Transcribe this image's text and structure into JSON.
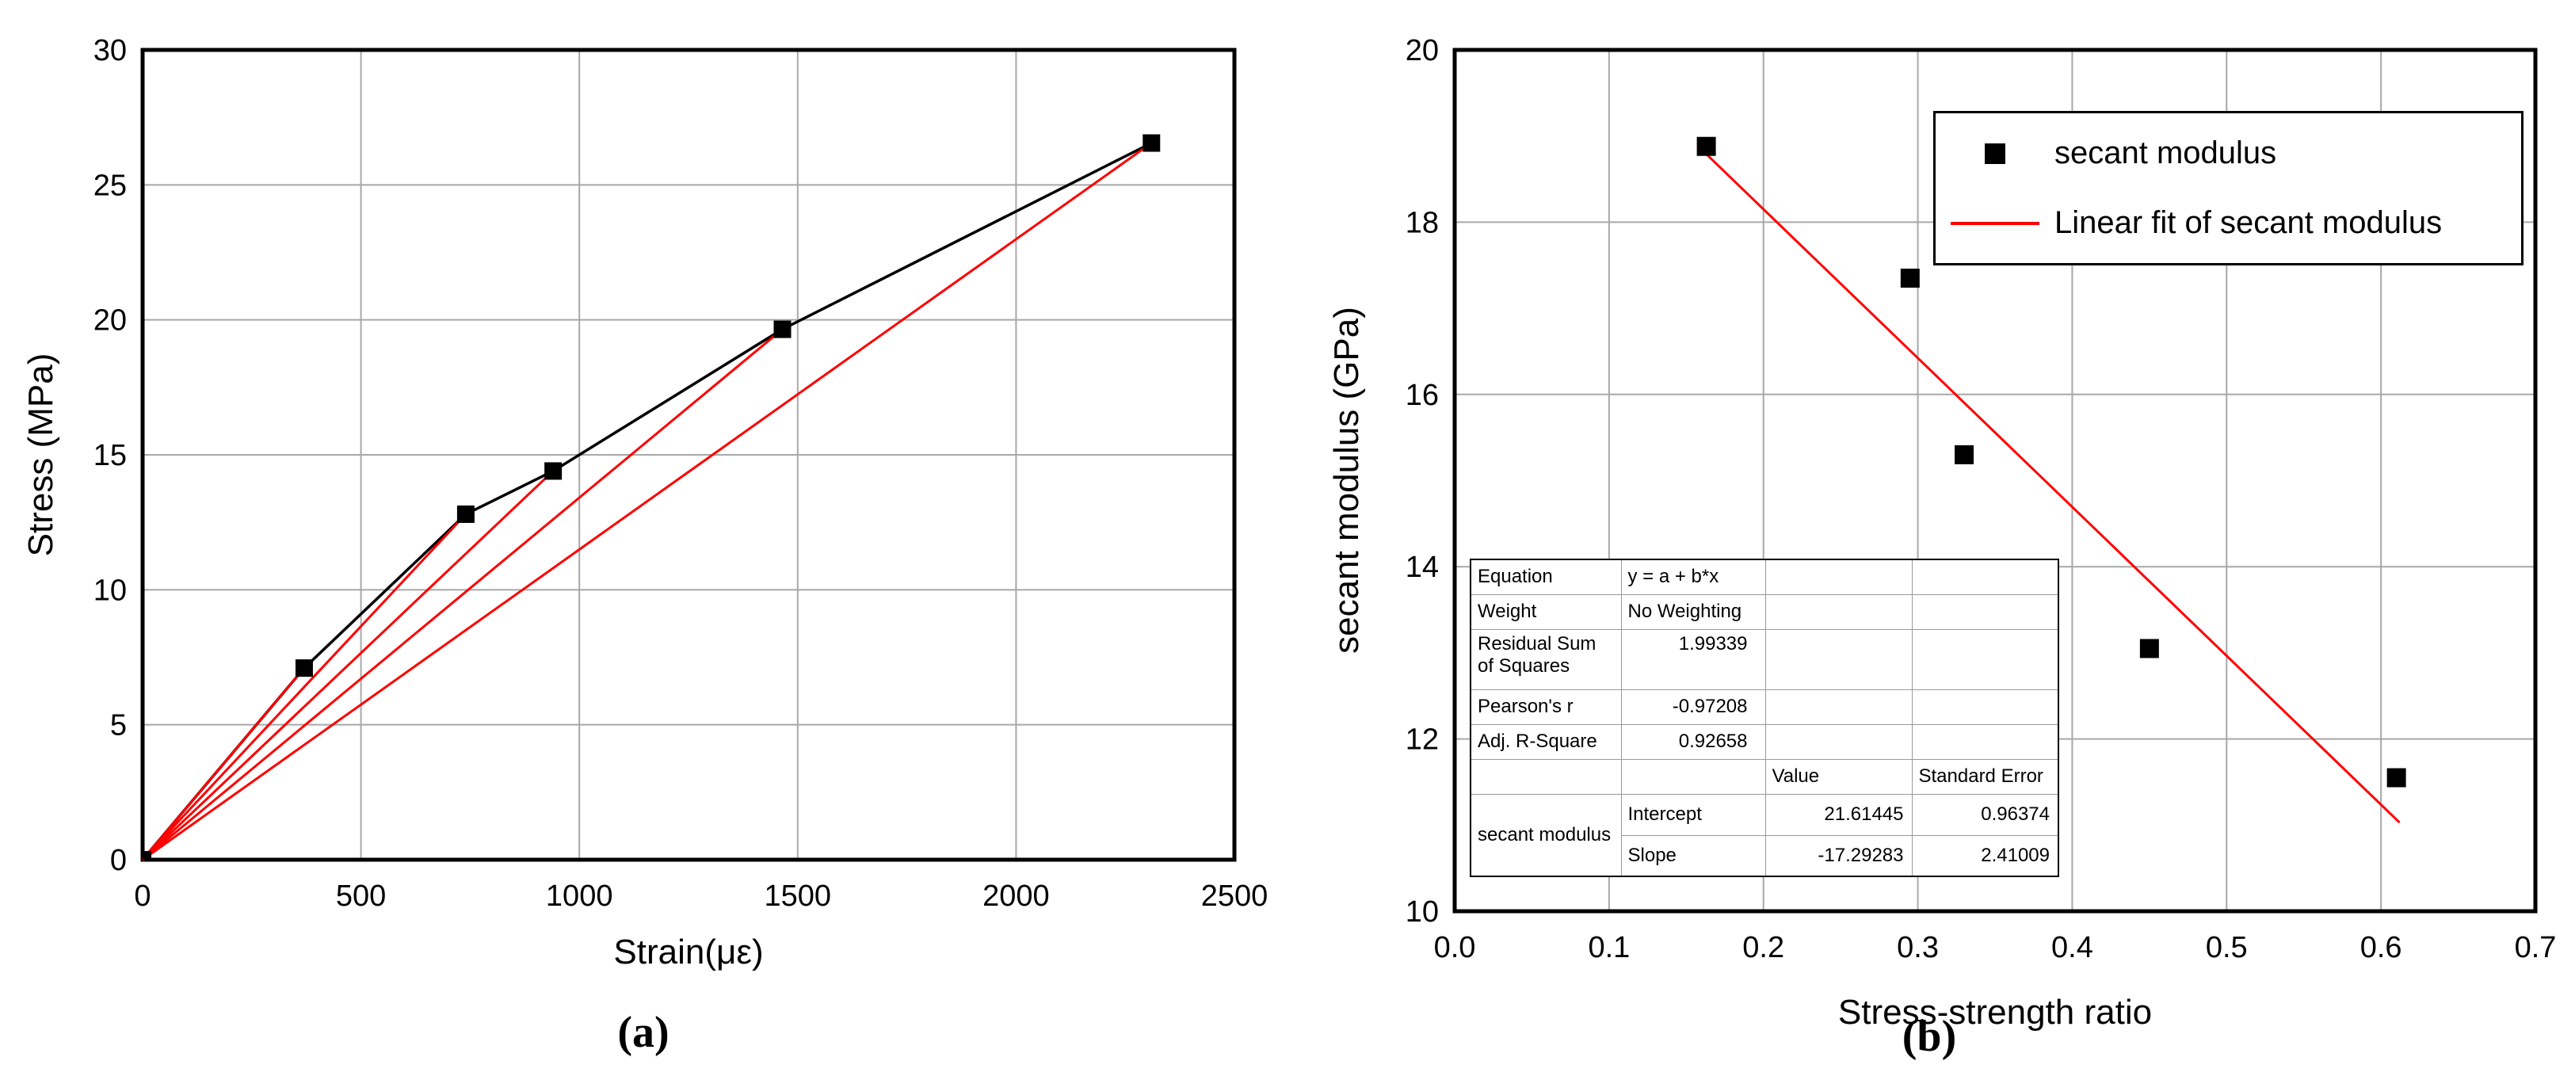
{
  "figure": {
    "background": "#ffffff",
    "captions": {
      "a": "(a)",
      "b": "(b)"
    }
  },
  "colors": {
    "curve_black": "#000000",
    "secant_red": "#ff0000",
    "fit_red": "#ff0000",
    "grid_gray": "#a8a8a8",
    "axis_black": "#000000",
    "marker_black": "#000000"
  },
  "chart_data": [
    {
      "id": "a",
      "type": "line",
      "caption": "(a)",
      "xlabel": "Strain(με)",
      "ylabel": "Stress (MPa)",
      "xlim": [
        0,
        2500
      ],
      "ylim": [
        0,
        30
      ],
      "grid": true,
      "xticks": [
        0,
        500,
        1000,
        1500,
        2000,
        2500
      ],
      "xtick_labels": [
        "0",
        "500",
        "1000",
        "1500",
        "2000",
        "2500"
      ],
      "yticks": [
        0,
        5,
        10,
        15,
        20,
        25,
        30
      ],
      "ytick_labels": [
        "0",
        "5",
        "10",
        "15",
        "20",
        "25",
        "30"
      ],
      "series": [
        {
          "name": "stress-strain curve",
          "color": "#000000",
          "marker": "square",
          "points": [
            [
              0,
              0
            ],
            [
              370,
              7.1
            ],
            [
              740,
              12.8
            ],
            [
              940,
              14.4
            ],
            [
              1465,
              19.65
            ],
            [
              2310,
              26.55
            ]
          ]
        }
      ],
      "secant_lines": {
        "name": "secant lines from origin",
        "color": "#ff0000",
        "from": [
          0,
          0
        ],
        "to": [
          [
            370,
            7.1
          ],
          [
            740,
            12.8
          ],
          [
            940,
            14.4
          ],
          [
            1465,
            19.65
          ],
          [
            2310,
            26.55
          ]
        ]
      }
    },
    {
      "id": "b",
      "type": "scatter",
      "caption": "(b)",
      "xlabel": "Stress-strength ratio",
      "ylabel": "secant modulus (GPa)",
      "xlim": [
        0.0,
        0.7
      ],
      "ylim": [
        10,
        20
      ],
      "grid": true,
      "xticks": [
        0.0,
        0.1,
        0.2,
        0.3,
        0.4,
        0.5,
        0.6,
        0.7
      ],
      "xtick_labels": [
        "0.0",
        "0.1",
        "0.2",
        "0.3",
        "0.4",
        "0.5",
        "0.6",
        "0.7"
      ],
      "yticks": [
        10,
        12,
        14,
        16,
        18,
        20
      ],
      "ytick_labels": [
        "10",
        "12",
        "14",
        "16",
        "18",
        "20"
      ],
      "scatter": {
        "name": "secant modulus",
        "color": "#000000",
        "marker": "square",
        "points": [
          [
            0.163,
            18.88
          ],
          [
            0.295,
            17.35
          ],
          [
            0.33,
            15.3
          ],
          [
            0.45,
            13.05
          ],
          [
            0.61,
            11.55
          ]
        ]
      },
      "fit": {
        "name": "Linear fit of secant modulus",
        "color": "#ff0000",
        "equation": "y = 21.61445 - 17.29283*x",
        "x1": 0.163,
        "y1": 18.79,
        "x2": 0.612,
        "y2": 11.03
      },
      "legend_position": "top-right"
    }
  ],
  "stats_table": {
    "equation_label": "Equation",
    "equation_value": "y = a + b*x",
    "weight_label": "Weight",
    "weight_value": "No Weighting",
    "rss_label": "Residual Sum of Squares",
    "rss_value": "1.99339",
    "pearson_label": "Pearson's r",
    "pearson_value": "-0.97208",
    "adjr_label": "Adj. R-Square",
    "adjr_value": "0.92658",
    "value_header": "Value",
    "stderr_header": "Standard Error",
    "series_label": "secant modulus",
    "intercept_label": "Intercept",
    "intercept_value": "21.61445",
    "intercept_stderr": "0.96374",
    "slope_label": "Slope",
    "slope_value": "-17.29283",
    "slope_stderr": "2.41009"
  }
}
